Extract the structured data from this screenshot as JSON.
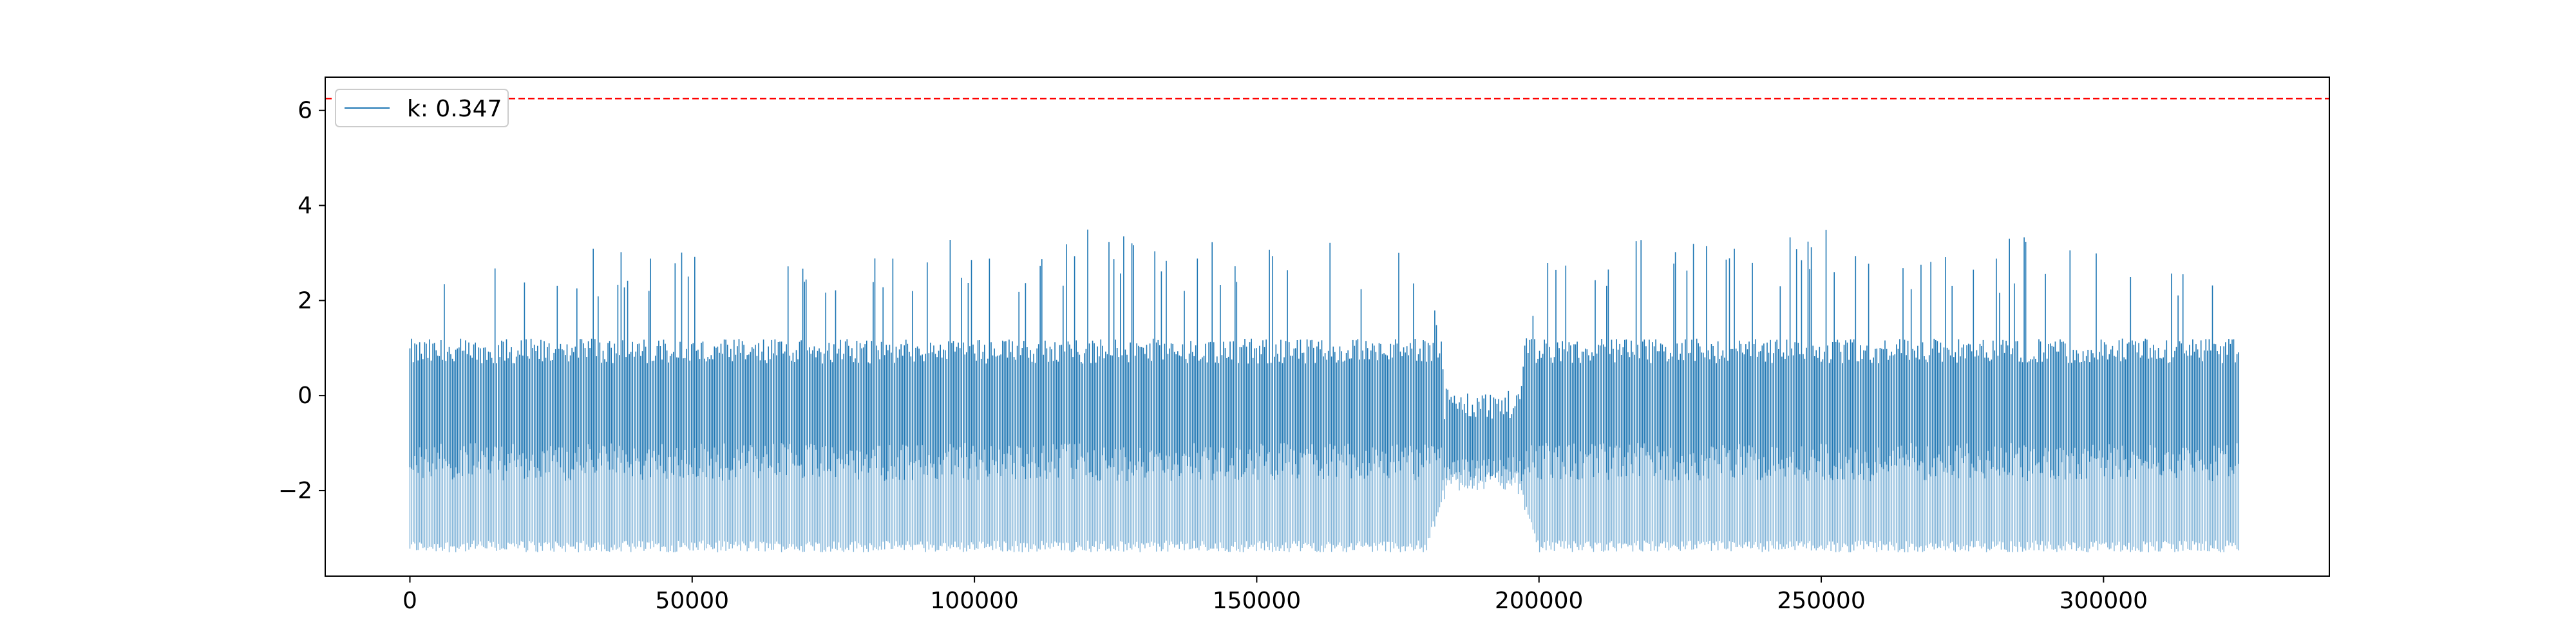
{
  "chart_data": {
    "type": "line",
    "title": "",
    "xlabel": "",
    "ylabel": "",
    "xlim": [
      -15000,
      340000
    ],
    "ylim": [
      -3.8,
      6.7
    ],
    "x_ticks": [
      0,
      50000,
      100000,
      150000,
      200000,
      250000,
      300000
    ],
    "y_ticks": [
      -2,
      0,
      2,
      4,
      6
    ],
    "x_tick_labels": [
      "0",
      "50000",
      "100000",
      "150000",
      "200000",
      "250000",
      "300000"
    ],
    "y_tick_labels": [
      "−2",
      "0",
      "2",
      "4",
      "6"
    ],
    "grid": false,
    "legend_position": "top-left",
    "legend": [
      "k: 0.347"
    ],
    "threshold_line": {
      "y": 6.25,
      "color": "#ff0000",
      "style": "dashed"
    },
    "series": [
      {
        "name": "k: 0.347",
        "color": "#1f77b4",
        "x_range": [
          0,
          324000
        ],
        "description_points": {
          "x": [
            0,
            5000,
            10000,
            20000,
            30000,
            40000,
            50000,
            60000,
            70000,
            80000,
            90000,
            100000,
            110000,
            120000,
            130000,
            140000,
            150000,
            160000,
            170000,
            180000,
            184000,
            190000,
            196000,
            200000,
            210000,
            220000,
            230000,
            240000,
            250000,
            260000,
            270000,
            280000,
            290000,
            300000,
            310000,
            320000,
            324000
          ],
          "y_max": [
            2.6,
            3.1,
            3.2,
            3.0,
            3.2,
            3.1,
            3.3,
            3.4,
            3.2,
            3.5,
            3.3,
            3.4,
            3.2,
            3.7,
            3.5,
            3.3,
            3.4,
            3.2,
            3.3,
            3.0,
            0.1,
            0.1,
            0.1,
            3.1,
            3.0,
            3.4,
            3.3,
            3.2,
            3.6,
            3.4,
            3.3,
            3.2,
            3.7,
            3.3,
            3.1,
            3.3,
            2.4
          ],
          "y_min": [
            -3.3,
            -3.3,
            -3.3,
            -3.3,
            -3.3,
            -3.3,
            -3.3,
            -3.3,
            -3.3,
            -3.3,
            -3.3,
            -3.3,
            -3.3,
            -3.3,
            -3.3,
            -3.3,
            -3.3,
            -3.3,
            -3.3,
            -3.3,
            -2.0,
            -2.0,
            -2.0,
            -3.3,
            -3.3,
            -3.3,
            -3.3,
            -3.3,
            -3.3,
            -3.3,
            -3.3,
            -3.3,
            -3.3,
            -3.3,
            -3.3,
            -3.3,
            -3.3
          ]
        }
      }
    ]
  }
}
